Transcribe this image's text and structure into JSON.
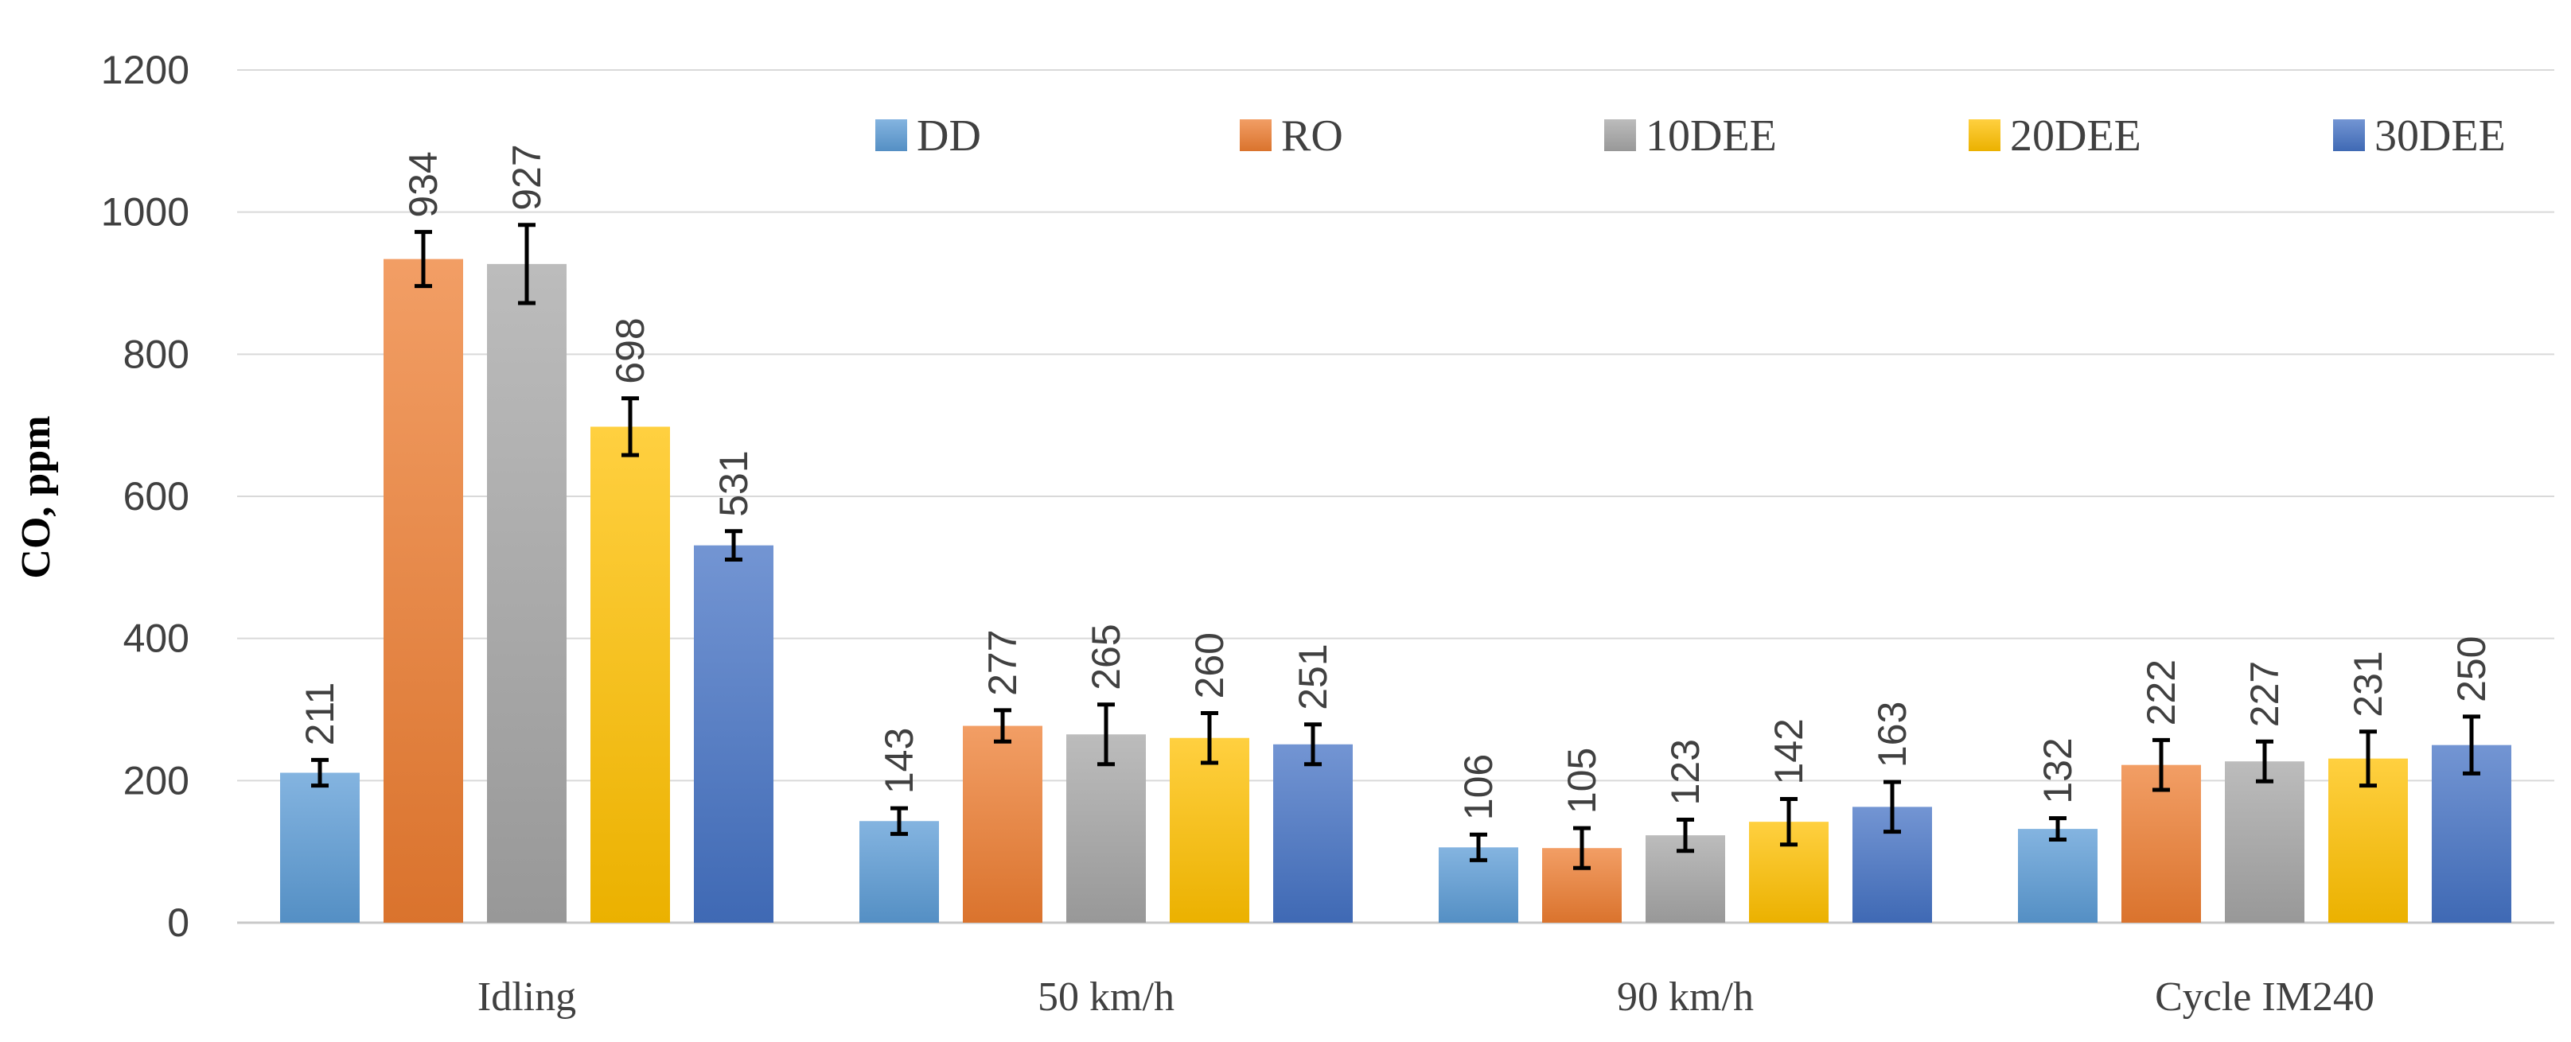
{
  "chart_data": {
    "type": "bar",
    "title": "",
    "xlabel": "",
    "ylabel": "CO, ppm",
    "ylim": [
      0,
      1200
    ],
    "yticks": [
      "0",
      "200",
      "400",
      "600",
      "800",
      "1000",
      "1200"
    ],
    "grid": true,
    "legend_position": "top-right",
    "categories": [
      "Idling",
      "50 km/h",
      "90 km/h",
      "Cycle IM240"
    ],
    "series": [
      {
        "name": "DD",
        "color": "#5B9BD5",
        "values": [
          211,
          143,
          106,
          132
        ],
        "errors": [
          18,
          18,
          18,
          15
        ]
      },
      {
        "name": "RO",
        "color": "#ED7D31",
        "values": [
          934,
          277,
          105,
          222
        ],
        "errors": [
          38,
          22,
          28,
          35
        ]
      },
      {
        "name": "10DEE",
        "color": "#A5A5A5",
        "values": [
          927,
          265,
          123,
          227
        ],
        "errors": [
          55,
          42,
          22,
          28
        ]
      },
      {
        "name": "20DEE",
        "color": "#FFC000",
        "values": [
          698,
          260,
          142,
          231
        ],
        "errors": [
          40,
          35,
          32,
          38
        ]
      },
      {
        "name": "30DEE",
        "color": "#4472C4",
        "values": [
          531,
          251,
          163,
          250
        ],
        "errors": [
          20,
          28,
          35,
          40
        ]
      }
    ]
  }
}
